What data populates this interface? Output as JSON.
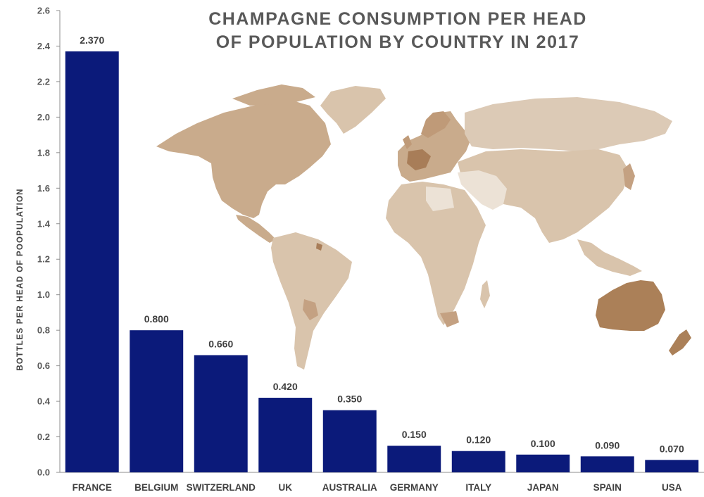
{
  "chart_data": {
    "type": "bar",
    "title_lines": [
      "CHAMPAGNE CONSUMPTION PER HEAD",
      "OF POPULATION BY COUNTRY IN 2017"
    ],
    "ylabel": "BOTTLES PER HEAD OF POOPULATION",
    "xlabel": "",
    "categories": [
      "FRANCE",
      "BELGIUM",
      "SWITZERLAND",
      "UK",
      "AUSTRALIA",
      "GERMANY",
      "ITALY",
      "JAPAN",
      "SPAIN",
      "USA"
    ],
    "values": [
      2.37,
      0.8,
      0.66,
      0.42,
      0.35,
      0.15,
      0.12,
      0.1,
      0.09,
      0.07
    ],
    "value_labels": [
      "2.370",
      "0.800",
      "0.660",
      "0.420",
      "0.350",
      "0.150",
      "0.120",
      "0.100",
      "0.090",
      "0.070"
    ],
    "ylim": [
      0,
      2.6
    ],
    "yticks": [
      0,
      0.2,
      0.4,
      0.6,
      0.8,
      1.0,
      1.2,
      1.4,
      1.6,
      1.8,
      2.0,
      2.2,
      2.4,
      2.6
    ],
    "ytick_labels": [
      "0.0",
      "0.2",
      "0.4",
      "0.6",
      "0.8",
      "1.0",
      "1.2",
      "1.4",
      "1.6",
      "1.8",
      "2.0",
      "2.2",
      "2.4",
      "2.6"
    ],
    "grid": false,
    "legend": "none",
    "bar_color": "#0b1a7a",
    "background_image": "world-choropleth-map",
    "map_colors": {
      "base": "#d9c4ac",
      "medium": "#c4a182",
      "dark": "#a87d58",
      "light": "#ece2d6"
    }
  }
}
